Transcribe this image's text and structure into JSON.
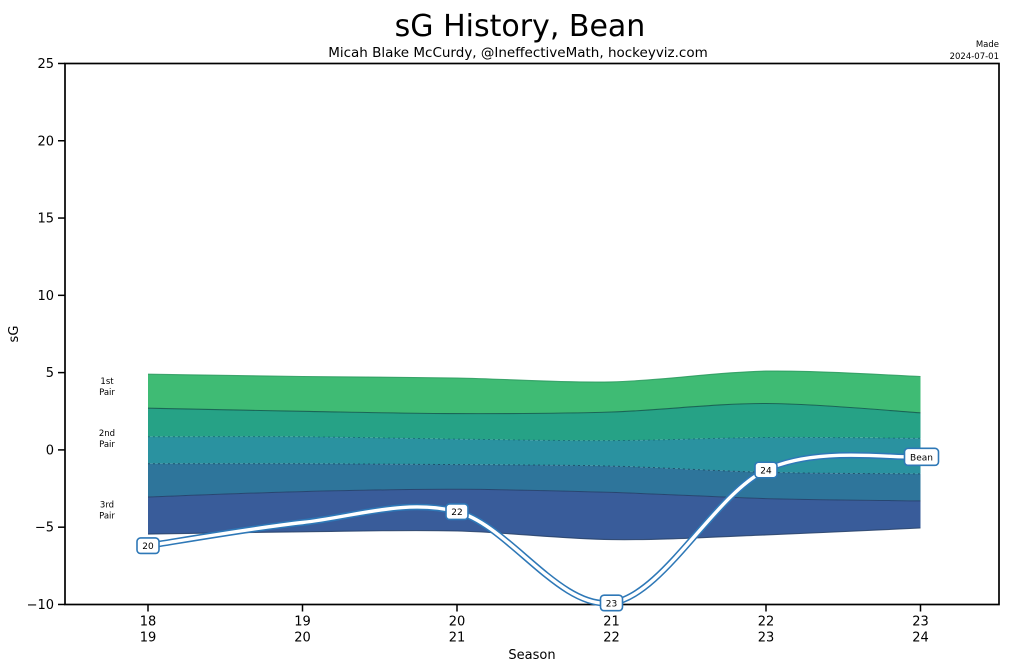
{
  "header": {
    "title": "sG History, Bean",
    "subtitle": "Micah Blake McCurdy, @IneffectiveMath, hockeyviz.com",
    "made_line1": "Made",
    "made_line2": "2024-07-01"
  },
  "chart_data": {
    "type": "area",
    "title": "sG History, Bean",
    "subtitle": "Micah Blake McCurdy, @IneffectiveMath, hockeyviz.com",
    "xlabel": "Season",
    "ylabel": "sG",
    "ylim": [
      -10,
      25
    ],
    "yticks": [
      25,
      20,
      15,
      10,
      5,
      0,
      -5,
      -10
    ],
    "x_categories": [
      [
        "18",
        "19"
      ],
      [
        "19",
        "20"
      ],
      [
        "20",
        "21"
      ],
      [
        "21",
        "22"
      ],
      [
        "22",
        "23"
      ],
      [
        "23",
        "24"
      ]
    ],
    "grid": false,
    "bands": {
      "description": "defense pair talent bands, top to bottom",
      "colors": [
        "#3fbb74",
        "#26a286",
        "#2a92a0",
        "#2e759b",
        "#395c9a"
      ],
      "boundaries": {
        "top": [
          4.9,
          4.75,
          4.65,
          4.4,
          5.1,
          4.75
        ],
        "b1": [
          2.7,
          2.5,
          2.35,
          2.45,
          3.0,
          2.4
        ],
        "b2": [
          0.85,
          0.85,
          0.7,
          0.6,
          0.8,
          0.75
        ],
        "b3": [
          -0.9,
          -0.9,
          -0.95,
          -1.05,
          -1.45,
          -1.55
        ],
        "b4": [
          -3.05,
          -2.7,
          -2.55,
          -2.75,
          -3.15,
          -3.3
        ],
        "bottom": [
          -5.45,
          -5.3,
          -5.25,
          -5.8,
          -5.5,
          -5.05
        ]
      },
      "boundary_styles": [
        {
          "key": "top",
          "color": "#2a9a5e",
          "width": 1.1,
          "dash": ""
        },
        {
          "key": "b1",
          "color": "#14594d",
          "width": 1.1,
          "dash": ""
        },
        {
          "key": "b2",
          "color": "#166b74",
          "width": 1.0,
          "dash": "2 3"
        },
        {
          "key": "b3",
          "color": "#1a4a63",
          "width": 1.0,
          "dash": "2 3"
        },
        {
          "key": "b4",
          "color": "#243f69",
          "width": 1.0,
          "dash": ""
        },
        {
          "key": "bottom",
          "color": "#253e66",
          "width": 1.1,
          "dash": ""
        }
      ]
    },
    "zone_labels": [
      {
        "line1": "1st",
        "line2": "Pair",
        "at_value": 4.15
      },
      {
        "line1": "2nd",
        "line2": "Pair",
        "at_value": 0.78
      },
      {
        "line1": "3rd",
        "line2": "Pair",
        "at_value": -3.85
      }
    ],
    "line": {
      "player": "Bean",
      "color": "#2e78b7",
      "values": [
        -6.2,
        -4.7,
        -4.0,
        -9.9,
        -1.3,
        -0.45
      ],
      "point_labels": [
        "20",
        "",
        "22",
        "23",
        "24",
        ""
      ],
      "end_label": "Bean"
    }
  }
}
